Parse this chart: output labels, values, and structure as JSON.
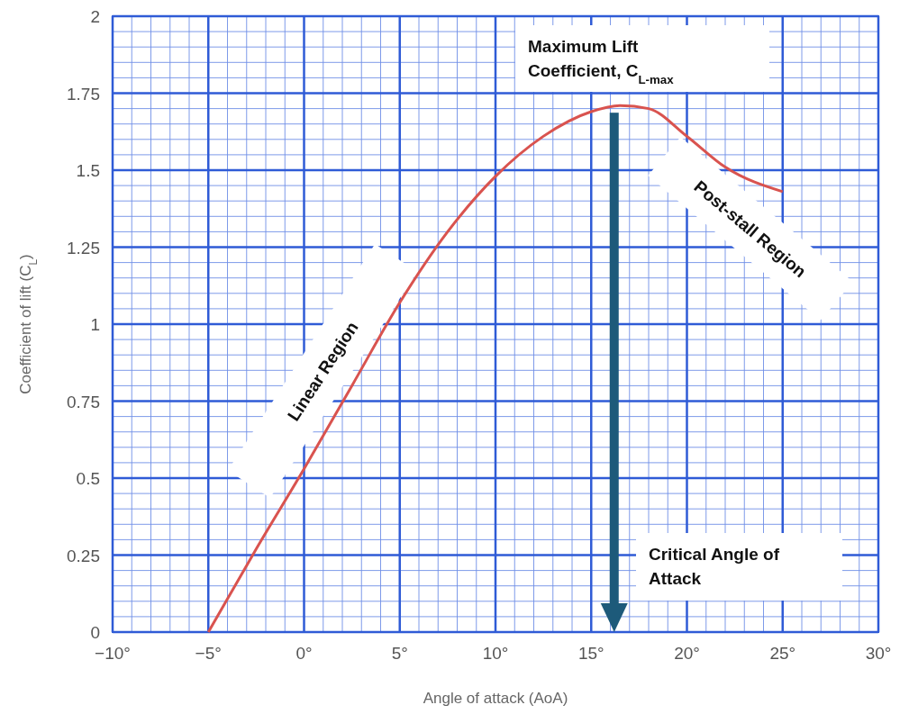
{
  "chart_data": {
    "type": "line",
    "xlabel": "Angle of attack (AoA)",
    "ylabel": "Coefficient of lift (C$_{L}$)",
    "x": [
      -5,
      -2.5,
      0,
      2.5,
      5,
      7.5,
      10,
      12.5,
      15,
      16.5,
      18,
      20,
      22,
      25
    ],
    "series": [
      {
        "color": "#d9534f",
        "values": [
          0,
          0.27,
          0.53,
          0.8,
          1.07,
          1.3,
          1.48,
          1.61,
          1.69,
          1.71,
          1.7,
          1.61,
          1.51,
          1.43
        ]
      }
    ],
    "xlim": [
      -10,
      30
    ],
    "xticks": [
      {
        "value": -10,
        "label": "−10°"
      },
      {
        "value": -9,
        "label": null
      },
      {
        "value": -8,
        "label": null
      },
      {
        "value": -7,
        "label": null
      },
      {
        "value": -6,
        "label": null
      },
      {
        "value": -5,
        "label": "−5°"
      },
      {
        "value": -4,
        "label": null
      },
      {
        "value": -3,
        "label": null
      },
      {
        "value": -2,
        "label": null
      },
      {
        "value": -1,
        "label": null
      },
      {
        "value": 0,
        "label": "0°"
      },
      {
        "value": 1,
        "label": null
      },
      {
        "value": 2,
        "label": null
      },
      {
        "value": 3,
        "label": null
      },
      {
        "value": 4,
        "label": null
      },
      {
        "value": 5,
        "label": "5°"
      },
      {
        "value": 6,
        "label": null
      },
      {
        "value": 7,
        "label": null
      },
      {
        "value": 8,
        "label": null
      },
      {
        "value": 9,
        "label": null
      },
      {
        "value": 10,
        "label": "10°"
      },
      {
        "value": 11,
        "label": null
      },
      {
        "value": 12,
        "label": null
      },
      {
        "value": 13,
        "label": null
      },
      {
        "value": 14,
        "label": null
      },
      {
        "value": 15,
        "label": "15°"
      },
      {
        "value": 16,
        "label": null
      },
      {
        "value": 17,
        "label": null
      },
      {
        "value": 18,
        "label": null
      },
      {
        "value": 19,
        "label": null
      },
      {
        "value": 20,
        "label": "20°"
      },
      {
        "value": 21,
        "label": null
      },
      {
        "value": 22,
        "label": null
      },
      {
        "value": 23,
        "label": null
      },
      {
        "value": 24,
        "label": null
      },
      {
        "value": 25,
        "label": "25°"
      },
      {
        "value": 26,
        "label": null
      },
      {
        "value": 27,
        "label": null
      },
      {
        "value": 28,
        "label": null
      },
      {
        "value": 29,
        "label": null
      },
      {
        "value": 30,
        "label": "30°"
      }
    ],
    "ylim": [
      0,
      2
    ],
    "yticks": [
      0,
      {
        "value": 0.05,
        "label": null
      },
      {
        "value": 0.1,
        "label": null
      },
      {
        "value": 0.15,
        "label": null
      },
      {
        "value": 0.2,
        "label": null
      },
      0.25,
      {
        "value": 0.3,
        "label": null
      },
      {
        "value": 0.35,
        "label": null
      },
      {
        "value": 0.4,
        "label": null
      },
      {
        "value": 0.45,
        "label": null
      },
      0.5,
      {
        "value": 0.55,
        "label": null
      },
      {
        "value": 0.6,
        "label": null
      },
      {
        "value": 0.65,
        "label": null
      },
      {
        "value": 0.7,
        "label": null
      },
      0.75,
      {
        "value": 0.8,
        "label": null
      },
      {
        "value": 0.85,
        "label": null
      },
      {
        "value": 0.9,
        "label": null
      },
      {
        "value": 0.95,
        "label": null
      },
      1,
      {
        "value": 1.05,
        "label": null
      },
      {
        "value": 1.1,
        "label": null
      },
      {
        "value": 1.15,
        "label": null
      },
      {
        "value": 1.2,
        "label": null
      },
      1.25,
      {
        "value": 1.3,
        "label": null
      },
      {
        "value": 1.35,
        "label": null
      },
      {
        "value": 1.4,
        "label": null
      },
      {
        "value": 1.45,
        "label": null
      },
      1.5,
      {
        "value": 1.55,
        "label": null
      },
      {
        "value": 1.6,
        "label": null
      },
      {
        "value": 1.65,
        "label": null
      },
      {
        "value": 1.7,
        "label": null
      },
      1.75,
      {
        "value": 1.8,
        "label": null
      },
      {
        "value": 1.85,
        "label": null
      },
      {
        "value": 1.9,
        "label": null
      },
      {
        "value": 1.95,
        "label": null
      },
      2
    ],
    "grid": true,
    "line_style": "solid",
    "marker": "none",
    "annotations": [
      {
        "text": "Maximum Lift Coefficient, C$_{L-max}$",
        "x": 16.2,
        "y": 1.71
      },
      "Critical Angle of Attack",
      "Linear Region",
      "Post-stall Region"
    ]
  }
}
